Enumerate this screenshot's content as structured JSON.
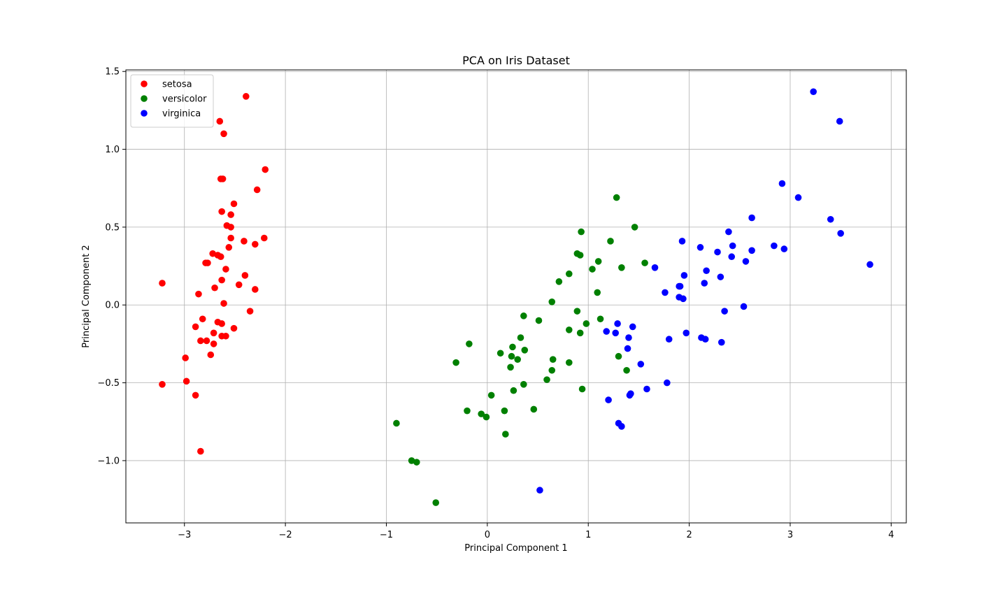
{
  "chart_data": {
    "type": "scatter",
    "title": "PCA on Iris Dataset",
    "xlabel": "Principal Component 1",
    "ylabel": "Principal Component 2",
    "xlim": [
      -3.58,
      4.15
    ],
    "ylim": [
      -1.4,
      1.51
    ],
    "x_ticks": [
      -3,
      -2,
      -1,
      0,
      1,
      2,
      3,
      4
    ],
    "x_tick_labels": [
      "−3",
      "−2",
      "−1",
      "0",
      "1",
      "2",
      "3",
      "4"
    ],
    "y_ticks": [
      -1.0,
      -0.5,
      0.0,
      0.5,
      1.0,
      1.5
    ],
    "y_tick_labels": [
      "−1.0",
      "−0.5",
      "0.0",
      "0.5",
      "1.0",
      "1.5"
    ],
    "grid": true,
    "legend_position": "upper-left",
    "series": [
      {
        "name": "setosa",
        "color": "#ff0000",
        "points": [
          [
            -2.39,
            1.34
          ],
          [
            -2.65,
            1.18
          ],
          [
            -2.61,
            1.1
          ],
          [
            -2.2,
            0.87
          ],
          [
            -2.64,
            0.81
          ],
          [
            -2.62,
            0.81
          ],
          [
            -2.28,
            0.74
          ],
          [
            -2.51,
            0.65
          ],
          [
            -2.63,
            0.6
          ],
          [
            -2.54,
            0.58
          ],
          [
            -2.58,
            0.51
          ],
          [
            -2.54,
            0.5
          ],
          [
            -2.21,
            0.43
          ],
          [
            -2.54,
            0.43
          ],
          [
            -2.41,
            0.41
          ],
          [
            -2.3,
            0.39
          ],
          [
            -2.56,
            0.37
          ],
          [
            -2.72,
            0.33
          ],
          [
            -2.67,
            0.32
          ],
          [
            -2.64,
            0.31
          ],
          [
            -2.79,
            0.27
          ],
          [
            -2.77,
            0.27
          ],
          [
            -2.59,
            0.23
          ],
          [
            -2.4,
            0.19
          ],
          [
            -2.63,
            0.16
          ],
          [
            -3.22,
            0.14
          ],
          [
            -2.46,
            0.13
          ],
          [
            -2.7,
            0.11
          ],
          [
            -2.3,
            0.1
          ],
          [
            -2.86,
            0.07
          ],
          [
            -2.61,
            0.01
          ],
          [
            -2.35,
            -0.04
          ],
          [
            -2.82,
            -0.09
          ],
          [
            -2.67,
            -0.11
          ],
          [
            -2.63,
            -0.12
          ],
          [
            -2.89,
            -0.14
          ],
          [
            -2.51,
            -0.15
          ],
          [
            -2.71,
            -0.18
          ],
          [
            -2.63,
            -0.2
          ],
          [
            -2.59,
            -0.2
          ],
          [
            -2.84,
            -0.23
          ],
          [
            -2.78,
            -0.23
          ],
          [
            -2.71,
            -0.25
          ],
          [
            -2.74,
            -0.32
          ],
          [
            -2.99,
            -0.34
          ],
          [
            -2.98,
            -0.49
          ],
          [
            -3.22,
            -0.51
          ],
          [
            -2.89,
            -0.58
          ],
          [
            -2.84,
            -0.94
          ]
        ]
      },
      {
        "name": "versicolor",
        "color": "#008000",
        "points": [
          [
            1.28,
            0.69
          ],
          [
            1.46,
            0.5
          ],
          [
            0.93,
            0.47
          ],
          [
            1.22,
            0.41
          ],
          [
            0.89,
            0.33
          ],
          [
            0.92,
            0.32
          ],
          [
            1.1,
            0.28
          ],
          [
            1.56,
            0.27
          ],
          [
            1.33,
            0.24
          ],
          [
            1.04,
            0.23
          ],
          [
            0.81,
            0.2
          ],
          [
            0.71,
            0.15
          ],
          [
            1.09,
            0.08
          ],
          [
            0.64,
            0.02
          ],
          [
            0.89,
            -0.04
          ],
          [
            0.36,
            -0.07
          ],
          [
            1.12,
            -0.09
          ],
          [
            0.51,
            -0.1
          ],
          [
            0.98,
            -0.12
          ],
          [
            0.81,
            -0.16
          ],
          [
            0.92,
            -0.18
          ],
          [
            0.33,
            -0.21
          ],
          [
            -0.18,
            -0.25
          ],
          [
            0.25,
            -0.27
          ],
          [
            0.37,
            -0.29
          ],
          [
            0.13,
            -0.31
          ],
          [
            0.24,
            -0.33
          ],
          [
            1.3,
            -0.33
          ],
          [
            0.3,
            -0.35
          ],
          [
            0.65,
            -0.35
          ],
          [
            -0.31,
            -0.37
          ],
          [
            0.81,
            -0.37
          ],
          [
            0.23,
            -0.4
          ],
          [
            0.64,
            -0.42
          ],
          [
            1.38,
            -0.42
          ],
          [
            0.59,
            -0.48
          ],
          [
            0.36,
            -0.51
          ],
          [
            0.94,
            -0.54
          ],
          [
            0.26,
            -0.55
          ],
          [
            0.04,
            -0.58
          ],
          [
            0.46,
            -0.67
          ],
          [
            -0.2,
            -0.68
          ],
          [
            0.17,
            -0.68
          ],
          [
            -0.06,
            -0.7
          ],
          [
            -0.01,
            -0.72
          ],
          [
            -0.9,
            -0.76
          ],
          [
            0.18,
            -0.83
          ],
          [
            -0.75,
            -1.0
          ],
          [
            -0.7,
            -1.01
          ],
          [
            -0.51,
            -1.27
          ]
        ]
      },
      {
        "name": "virginica",
        "color": "#0000ff",
        "points": [
          [
            3.23,
            1.37
          ],
          [
            3.49,
            1.18
          ],
          [
            2.92,
            0.78
          ],
          [
            3.08,
            0.69
          ],
          [
            2.62,
            0.56
          ],
          [
            3.4,
            0.55
          ],
          [
            2.39,
            0.47
          ],
          [
            3.5,
            0.46
          ],
          [
            1.93,
            0.41
          ],
          [
            2.84,
            0.38
          ],
          [
            2.43,
            0.38
          ],
          [
            2.11,
            0.37
          ],
          [
            2.94,
            0.36
          ],
          [
            2.62,
            0.35
          ],
          [
            2.28,
            0.34
          ],
          [
            2.42,
            0.31
          ],
          [
            2.56,
            0.28
          ],
          [
            3.79,
            0.26
          ],
          [
            1.66,
            0.24
          ],
          [
            2.17,
            0.22
          ],
          [
            1.95,
            0.19
          ],
          [
            2.31,
            0.18
          ],
          [
            2.15,
            0.14
          ],
          [
            1.91,
            0.12
          ],
          [
            1.9,
            0.12
          ],
          [
            1.76,
            0.08
          ],
          [
            1.9,
            0.05
          ],
          [
            1.94,
            0.04
          ],
          [
            2.54,
            -0.01
          ],
          [
            2.35,
            -0.04
          ],
          [
            1.29,
            -0.12
          ],
          [
            1.44,
            -0.14
          ],
          [
            1.18,
            -0.17
          ],
          [
            1.27,
            -0.18
          ],
          [
            1.97,
            -0.18
          ],
          [
            1.4,
            -0.21
          ],
          [
            2.12,
            -0.21
          ],
          [
            2.16,
            -0.22
          ],
          [
            1.8,
            -0.22
          ],
          [
            2.32,
            -0.24
          ],
          [
            1.39,
            -0.28
          ],
          [
            1.52,
            -0.38
          ],
          [
            1.78,
            -0.5
          ],
          [
            1.58,
            -0.54
          ],
          [
            1.42,
            -0.57
          ],
          [
            1.41,
            -0.58
          ],
          [
            1.2,
            -0.61
          ],
          [
            1.3,
            -0.76
          ],
          [
            1.33,
            -0.78
          ],
          [
            0.52,
            -1.19
          ]
        ]
      }
    ]
  }
}
